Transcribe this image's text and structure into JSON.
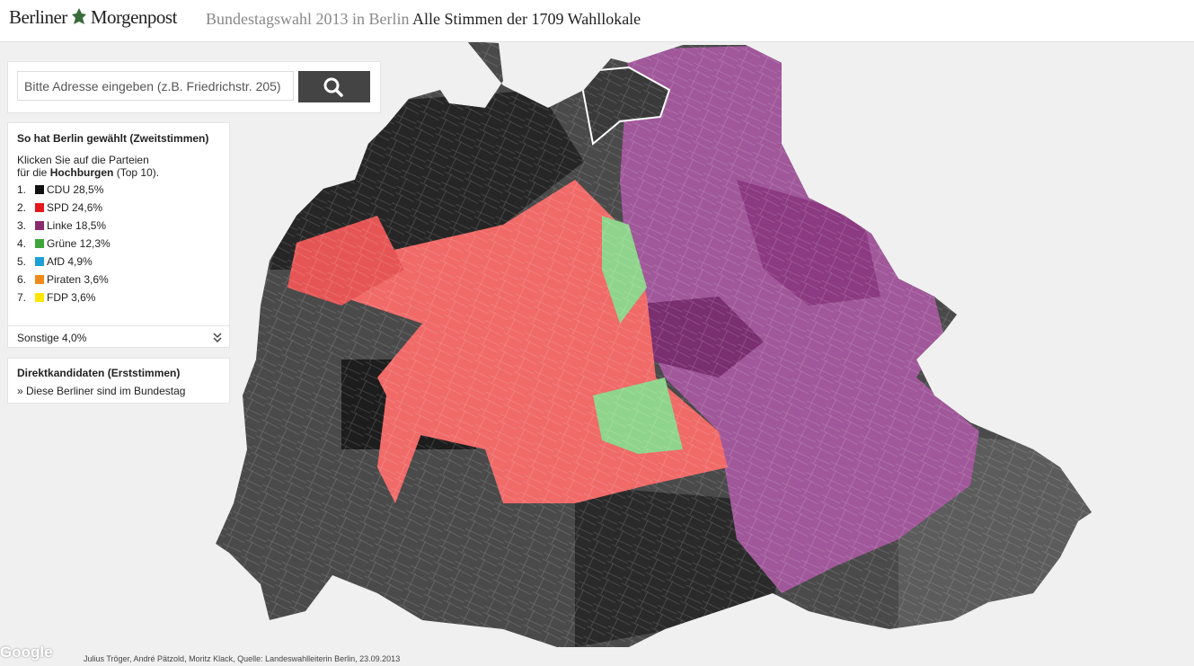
{
  "header": {
    "logo_left": "Berliner",
    "logo_right": "Morgenpost",
    "title_light": "Bundestagswahl 2013 in Berlin",
    "title_dark": "Alle Stimmen der 1709 Wahllokale"
  },
  "search": {
    "placeholder": "Bitte Adresse eingeben (z.B. Friedrichstr. 205)"
  },
  "legend": {
    "title": "So hat Berlin gewählt (Zweitstimmen)",
    "instruction": {
      "line1": "Klicken Sie auf die Parteien",
      "line2_before": "für die",
      "bold": "Hochburgen",
      "after": "(Top 10)."
    },
    "parties": [
      {
        "rank": "1.",
        "label": "CDU 28,5%",
        "color": "#111111"
      },
      {
        "rank": "2.",
        "label": "SPD 24,6%",
        "color": "#e3191b"
      },
      {
        "rank": "3.",
        "label": "Linke 18,5%",
        "color": "#8c2a6e"
      },
      {
        "rank": "4.",
        "label": "Grüne 12,3%",
        "color": "#3ea53a"
      },
      {
        "rank": "5.",
        "label": "AfD 4,9%",
        "color": "#1f9fd8"
      },
      {
        "rank": "6.",
        "label": "Piraten 3,6%",
        "color": "#f08a1c"
      },
      {
        "rank": "7.",
        "label": "FDP 3,6%",
        "color": "#ffe600"
      }
    ],
    "other": "Sonstige 4,0%"
  },
  "direct": {
    "title": "Direktkandidaten (Erststimmen)",
    "link": "» Diese Berliner sind im Bundestag"
  },
  "footer": {
    "credits": "Julius Tröger, André Pätzold, Moritz Klack, Quelle: Landeswahlleiterin Berlin, 23.09.2013",
    "watermark": "Google"
  }
}
